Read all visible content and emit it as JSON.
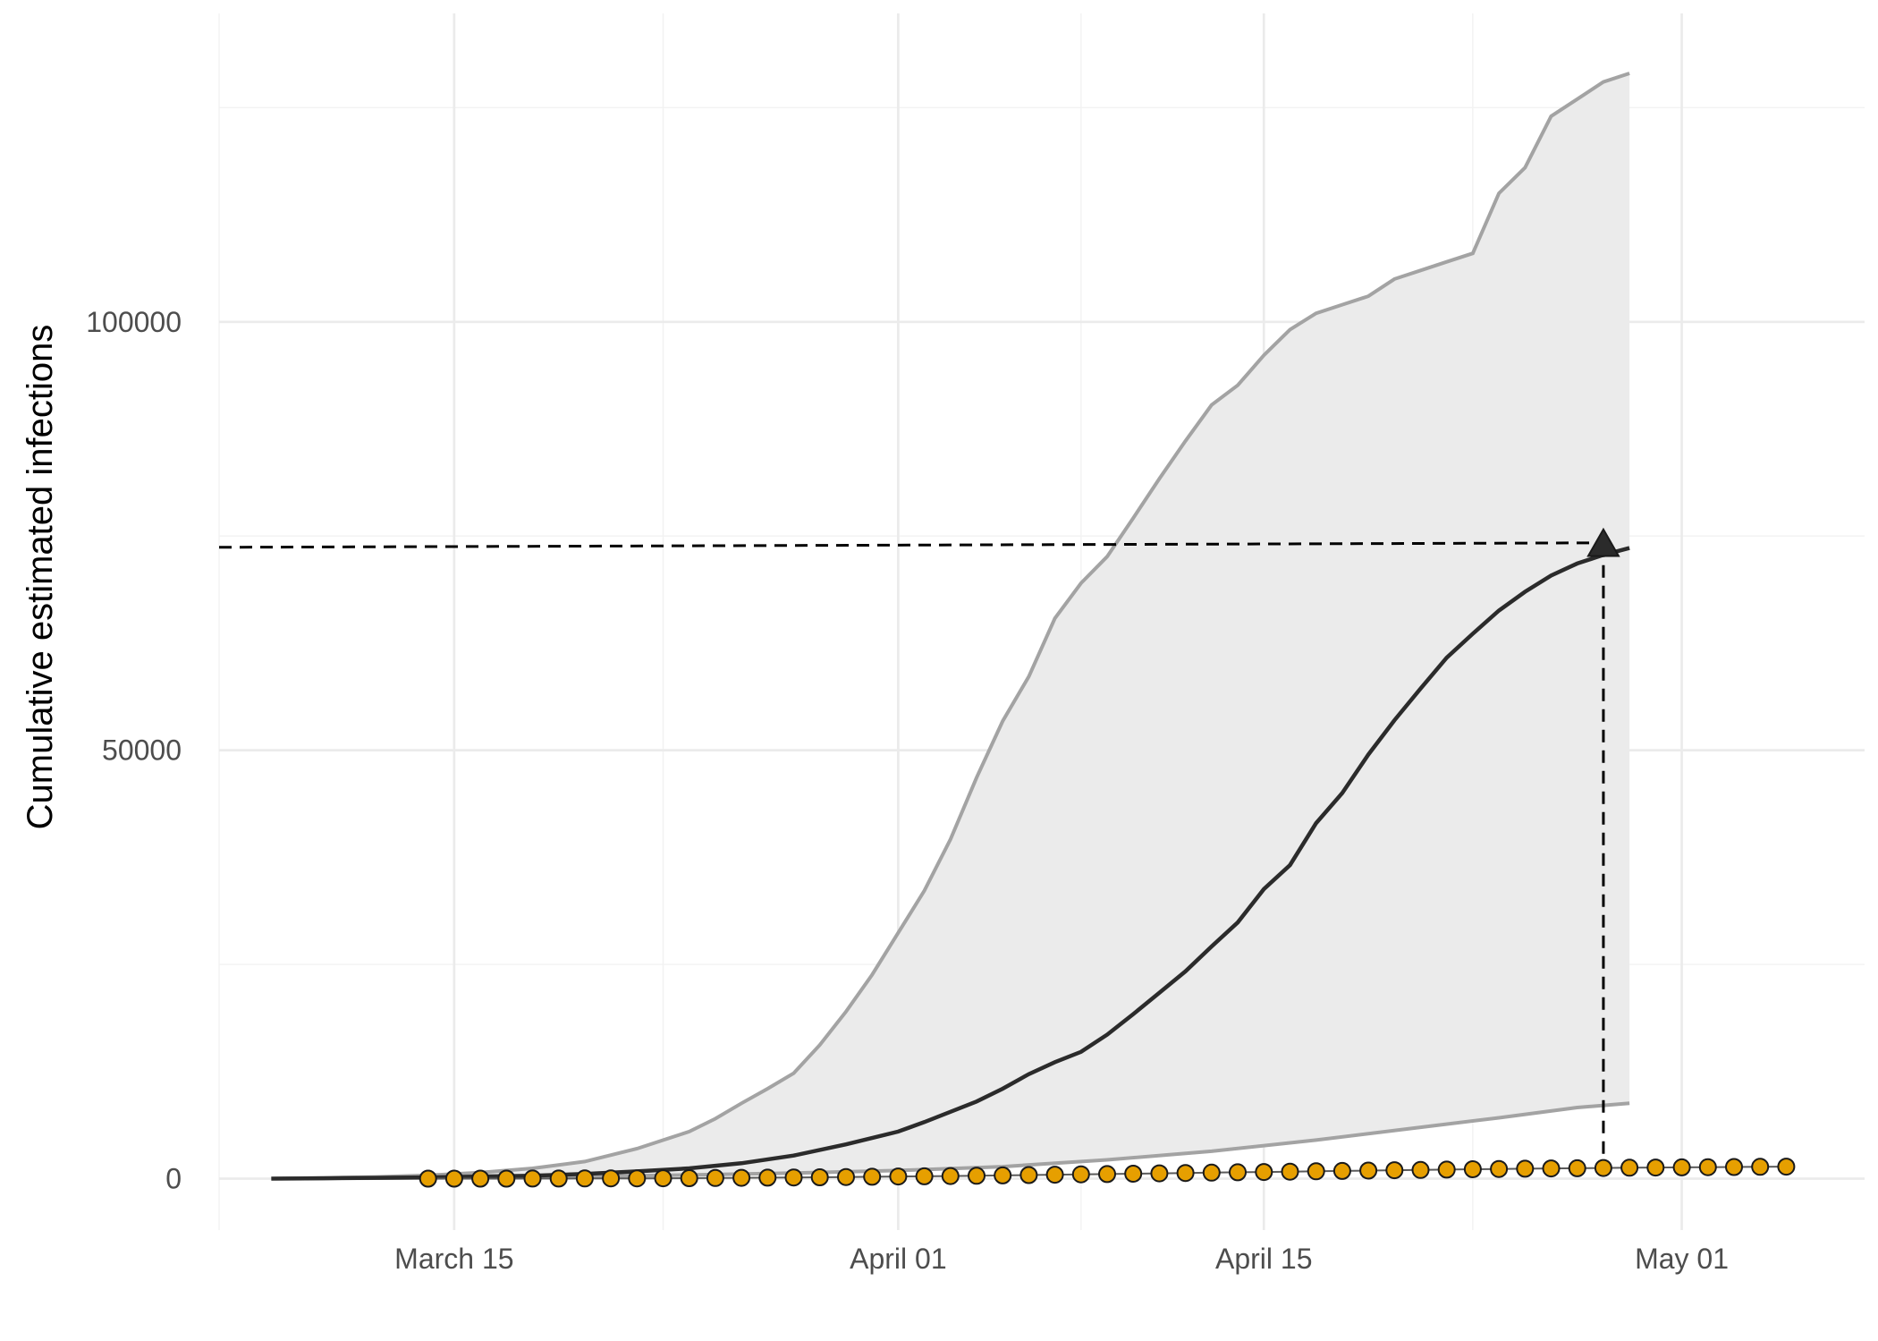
{
  "chart_data": {
    "type": "line",
    "ylabel": "Cumulative estimated infections",
    "xlabel": "",
    "x_ticks": [
      "2020-03-15",
      "2020-04-01",
      "2020-04-15",
      "2020-05-01"
    ],
    "x_tick_labels": [
      "March 15",
      "April 01",
      "April 15",
      "May 01"
    ],
    "y_ticks": [
      0,
      50000,
      100000
    ],
    "y_tick_labels": [
      "0",
      "50000",
      "100000"
    ],
    "xlim": [
      "2020-03-06",
      "2020-05-08"
    ],
    "ylim": [
      -6000,
      136000
    ],
    "grid": true,
    "legend": "none",
    "colors": {
      "ribbon": "#ebebeb",
      "bounds": "#a3a3a3",
      "median": "#2b2b2b",
      "observed": "#e69f00",
      "reference": "#000000"
    },
    "series": [
      {
        "role": "estimate-median",
        "x": [
          "2020-03-08",
          "2020-03-10",
          "2020-03-12",
          "2020-03-14",
          "2020-03-16",
          "2020-03-18",
          "2020-03-20",
          "2020-03-22",
          "2020-03-24",
          "2020-03-26",
          "2020-03-28",
          "2020-03-30",
          "2020-04-01",
          "2020-04-02",
          "2020-04-03",
          "2020-04-04",
          "2020-04-05",
          "2020-04-06",
          "2020-04-07",
          "2020-04-08",
          "2020-04-09",
          "2020-04-10",
          "2020-04-11",
          "2020-04-12",
          "2020-04-13",
          "2020-04-14",
          "2020-04-15",
          "2020-04-16",
          "2020-04-17",
          "2020-04-18",
          "2020-04-19",
          "2020-04-20",
          "2020-04-21",
          "2020-04-22",
          "2020-04-23",
          "2020-04-24",
          "2020-04-25",
          "2020-04-26",
          "2020-04-27",
          "2020-04-28",
          "2020-04-29"
        ],
        "y": [
          0,
          50,
          100,
          150,
          250,
          350,
          550,
          850,
          1200,
          1800,
          2700,
          4000,
          5500,
          6600,
          7800,
          9000,
          10500,
          12200,
          13600,
          14800,
          16800,
          19200,
          21700,
          24200,
          27100,
          29900,
          33800,
          36600,
          41500,
          45000,
          49500,
          53500,
          57200,
          60800,
          63600,
          66300,
          68500,
          70400,
          71800,
          72800,
          73600
        ]
      },
      {
        "role": "estimate-upper",
        "x": [
          "2020-03-08",
          "2020-03-10",
          "2020-03-12",
          "2020-03-14",
          "2020-03-16",
          "2020-03-18",
          "2020-03-20",
          "2020-03-22",
          "2020-03-24",
          "2020-03-25",
          "2020-03-26",
          "2020-03-27",
          "2020-03-28",
          "2020-03-29",
          "2020-03-30",
          "2020-03-31",
          "2020-04-01",
          "2020-04-02",
          "2020-04-03",
          "2020-04-04",
          "2020-04-05",
          "2020-04-06",
          "2020-04-07",
          "2020-04-08",
          "2020-04-09",
          "2020-04-10",
          "2020-04-11",
          "2020-04-12",
          "2020-04-13",
          "2020-04-14",
          "2020-04-15",
          "2020-04-16",
          "2020-04-17",
          "2020-04-18",
          "2020-04-19",
          "2020-04-20",
          "2020-04-21",
          "2020-04-22",
          "2020-04-23",
          "2020-04-24",
          "2020-04-25",
          "2020-04-26",
          "2020-04-27",
          "2020-04-28",
          "2020-04-29"
        ],
        "y": [
          0,
          100,
          200,
          400,
          700,
          1200,
          2000,
          3500,
          5500,
          7000,
          8800,
          10500,
          12300,
          15600,
          19500,
          23800,
          28700,
          33600,
          39600,
          46800,
          53400,
          58600,
          65400,
          69500,
          72600,
          77100,
          81700,
          86100,
          90300,
          92600,
          96100,
          99100,
          101000,
          102000,
          103000,
          105000,
          106000,
          107000,
          108000,
          115000,
          118000,
          124000,
          126000,
          128000,
          129000
        ]
      },
      {
        "role": "estimate-lower",
        "x": [
          "2020-03-08",
          "2020-03-12",
          "2020-03-16",
          "2020-03-20",
          "2020-03-24",
          "2020-03-28",
          "2020-04-01",
          "2020-04-05",
          "2020-04-09",
          "2020-04-13",
          "2020-04-17",
          "2020-04-21",
          "2020-04-24",
          "2020-04-27",
          "2020-04-29"
        ],
        "y": [
          0,
          60,
          130,
          250,
          430,
          650,
          950,
          1400,
          2200,
          3200,
          4500,
          6000,
          7100,
          8300,
          8800
        ]
      },
      {
        "role": "observed",
        "x": [
          "2020-03-14",
          "2020-03-15",
          "2020-03-16",
          "2020-03-17",
          "2020-03-18",
          "2020-03-19",
          "2020-03-20",
          "2020-03-21",
          "2020-03-22",
          "2020-03-23",
          "2020-03-24",
          "2020-03-25",
          "2020-03-26",
          "2020-03-27",
          "2020-03-28",
          "2020-03-29",
          "2020-03-30",
          "2020-03-31",
          "2020-04-01",
          "2020-04-02",
          "2020-04-03",
          "2020-04-04",
          "2020-04-05",
          "2020-04-06",
          "2020-04-07",
          "2020-04-08",
          "2020-04-09",
          "2020-04-10",
          "2020-04-11",
          "2020-04-12",
          "2020-04-13",
          "2020-04-14",
          "2020-04-15",
          "2020-04-16",
          "2020-04-17",
          "2020-04-18",
          "2020-04-19",
          "2020-04-20",
          "2020-04-21",
          "2020-04-22",
          "2020-04-23",
          "2020-04-24",
          "2020-04-25",
          "2020-04-26",
          "2020-04-27",
          "2020-04-28",
          "2020-04-29",
          "2020-04-30",
          "2020-05-01",
          "2020-05-02",
          "2020-05-03",
          "2020-05-04",
          "2020-05-05"
        ],
        "y": [
          0,
          0,
          0,
          5,
          10,
          15,
          20,
          30,
          40,
          50,
          60,
          80,
          100,
          120,
          140,
          160,
          190,
          220,
          250,
          280,
          310,
          340,
          380,
          420,
          460,
          500,
          540,
          580,
          620,
          660,
          700,
          740,
          780,
          820,
          860,
          900,
          940,
          980,
          1020,
          1060,
          1100,
          1130,
          1160,
          1190,
          1220,
          1250,
          1280,
          1300,
          1320,
          1340,
          1360,
          1380,
          1400
        ]
      }
    ],
    "annotation": {
      "x": "2020-04-28",
      "y": 74000,
      "marker": "triangle",
      "guides": "dashed horizontal to y-axis and dashed vertical to observed series"
    }
  }
}
